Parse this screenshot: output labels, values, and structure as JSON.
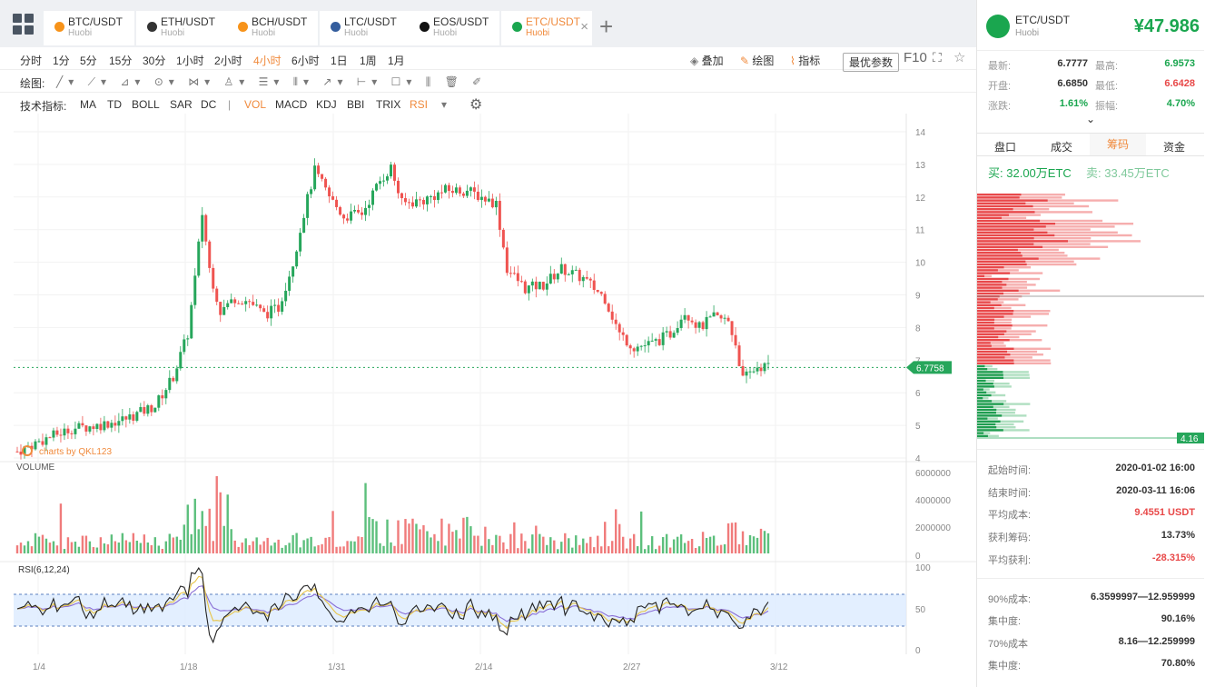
{
  "tabs": [
    {
      "name": "BTC/USDT",
      "exchange": "Huobi",
      "icon": "bitcoin-icon",
      "color": "#f7931a"
    },
    {
      "name": "ETH/USDT",
      "exchange": "Huobi",
      "icon": "ethereum-icon",
      "color": "#333333"
    },
    {
      "name": "BCH/USDT",
      "exchange": "Huobi",
      "icon": "bitcoin-cash-icon",
      "color": "#f7931a"
    },
    {
      "name": "LTC/USDT",
      "exchange": "Huobi",
      "icon": "litecoin-icon",
      "color": "#345d9d"
    },
    {
      "name": "EOS/USDT",
      "exchange": "Huobi",
      "icon": "eos-icon",
      "color": "#111111"
    },
    {
      "name": "ETC/USDT",
      "exchange": "Huobi",
      "icon": "ethereum-classic-icon",
      "color": "#1aa64f"
    }
  ],
  "periods": [
    "分时",
    "1分",
    "5分",
    "15分",
    "30分",
    "1小时",
    "2小时",
    "4小时",
    "6小时",
    "1日",
    "1周",
    "1月"
  ],
  "active_period": "4小时",
  "toolbar_right": {
    "overlay": "叠加",
    "draw": "绘图",
    "indicator": "指标",
    "params": "最优参数",
    "f10": "F10"
  },
  "draw_label": "绘图:",
  "indicators_label": "技术指标:",
  "indicators": [
    "MA",
    "TD",
    "BOLL",
    "SAR",
    "DC",
    "|",
    "VOL",
    "MACD",
    "KDJ",
    "BBI",
    "TRIX",
    "RSI"
  ],
  "active_indicators": [
    "VOL",
    "RSI"
  ],
  "chart_data": {
    "type": "candlestick",
    "price_ticks": [
      14,
      13,
      12,
      11,
      10,
      9,
      8,
      7,
      6,
      5,
      4
    ],
    "x_ticks": [
      "1/4",
      "1/18",
      "1/31",
      "2/14",
      "2/27",
      "3/12"
    ],
    "last_price_label": "6.7758",
    "watermark": "charts by QKL123",
    "volume_label": "VOLUME",
    "volume_ticks": [
      "6000000",
      "4000000",
      "2000000",
      "0"
    ],
    "rsi_label": "RSI(6,12,24)",
    "rsi_ticks": [
      "100",
      "50",
      "0"
    ],
    "price_path": [
      [
        0,
        4.2
      ],
      [
        8,
        4.6
      ],
      [
        15,
        4.9
      ],
      [
        22,
        5.0
      ],
      [
        30,
        5.2
      ],
      [
        38,
        5.6
      ],
      [
        43,
        6.5
      ],
      [
        47,
        7.8
      ],
      [
        49,
        9.5
      ],
      [
        51,
        11.5
      ],
      [
        53,
        9.8
      ],
      [
        56,
        8.5
      ],
      [
        60,
        8.9
      ],
      [
        64,
        8.8
      ],
      [
        68,
        8.4
      ],
      [
        72,
        8.6
      ],
      [
        76,
        10.0
      ],
      [
        79,
        11.5
      ],
      [
        82,
        12.8
      ],
      [
        86,
        12.0
      ],
      [
        90,
        11.4
      ],
      [
        95,
        11.5
      ],
      [
        100,
        12.5
      ],
      [
        103,
        12.9
      ],
      [
        106,
        11.8
      ],
      [
        112,
        11.9
      ],
      [
        118,
        12.2
      ],
      [
        124,
        12.2
      ],
      [
        128,
        12.0
      ],
      [
        132,
        11.8
      ],
      [
        135,
        9.8
      ],
      [
        140,
        9.2
      ],
      [
        145,
        9.3
      ],
      [
        150,
        9.8
      ],
      [
        156,
        9.5
      ],
      [
        162,
        8.9
      ],
      [
        166,
        7.8
      ],
      [
        170,
        7.4
      ],
      [
        175,
        7.5
      ],
      [
        180,
        7.8
      ],
      [
        184,
        8.5
      ],
      [
        188,
        8.0
      ],
      [
        192,
        8.3
      ],
      [
        196,
        8.2
      ],
      [
        198,
        7.5
      ],
      [
        200,
        6.4
      ],
      [
        204,
        6.8
      ],
      [
        207,
        6.8
      ]
    ],
    "buy_chips": "32.00万ETC",
    "sell_chips": "33.45万ETC",
    "chip_low_label": "4.16"
  },
  "right": {
    "pair": "ETC/USDT",
    "exchange": "Huobi",
    "price": "¥47.986",
    "stats": [
      {
        "label": "最新:",
        "value": "6.7777",
        "label2": "最高:",
        "value2": "6.9573",
        "c2": "#1aa64f"
      },
      {
        "label": "开盘:",
        "value": "6.6850",
        "label2": "最低:",
        "value2": "6.6428",
        "c2": "#e84848"
      },
      {
        "label": "涨跌:",
        "value": "1.61%",
        "c1": "#1aa64f",
        "label2": "振幅:",
        "value2": "4.70%",
        "c2": "#1aa64f"
      }
    ],
    "tabs": [
      "盘口",
      "成交",
      "筹码",
      "资金"
    ],
    "active_tab": "筹码",
    "buy_label": "买:",
    "sell_label": "卖:",
    "info": [
      {
        "label": "起始时间:",
        "value": "2020-01-02 16:00"
      },
      {
        "label": "结束时间:",
        "value": "2020-03-11 16:06"
      },
      {
        "label": "平均成本:",
        "value": "9.4551 USDT",
        "color": "#e84848"
      },
      {
        "label": "获利筹码:",
        "value": "13.73%"
      },
      {
        "label": "平均获利:",
        "value": "-28.315%",
        "color": "#e84848"
      },
      {
        "label": "90%成本:",
        "value": "6.3599997—12.959999"
      },
      {
        "label": "集中度:",
        "value": "90.16%"
      },
      {
        "label": "70%成本",
        "value": "8.16—12.259999"
      },
      {
        "label": "集中度:",
        "value": "70.80%"
      }
    ]
  }
}
